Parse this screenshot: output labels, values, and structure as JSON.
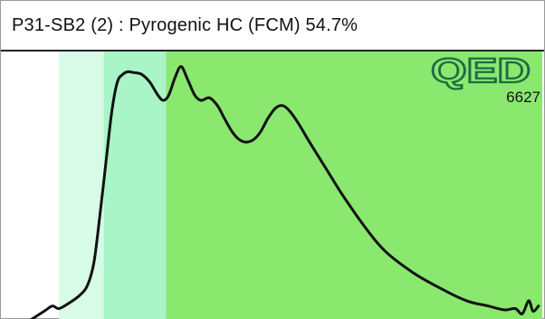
{
  "header": {
    "title": "P31-SB2 (2) : Pyrogenic HC (FCM) 54.7%"
  },
  "logo": {
    "text": "QED",
    "number": "6627",
    "color": "#1e6b44"
  },
  "colors": {
    "band_light": "#d8fbe8",
    "band_mid": "#a9f5c7",
    "band_main": "#8ae86f",
    "curve": "#111111"
  },
  "chart_data": {
    "type": "area",
    "title": "P31-SB2 (2) : Pyrogenic HC (FCM) 54.7%",
    "xlabel": "",
    "ylabel": "",
    "xlim": [
      0,
      100
    ],
    "ylim": [
      0,
      100
    ],
    "grid": false,
    "bands": [
      {
        "name": "band-light",
        "x_start": 10.7,
        "x_end": 19.0,
        "color": "#d8fbe8"
      },
      {
        "name": "band-mid",
        "x_start": 19.0,
        "x_end": 30.5,
        "color": "#a9f5c7"
      },
      {
        "name": "band-main",
        "x_start": 30.5,
        "x_end": 100,
        "color": "#8ae86f"
      }
    ],
    "series": [
      {
        "x": [
          5,
          8,
          9.5,
          10.7,
          12.5,
          14.5,
          16,
          17.2,
          18.3,
          19.5,
          20.5,
          21.5,
          22.5,
          23.5,
          24.5,
          26,
          27.5,
          29,
          30,
          31,
          32.2,
          33.3,
          34.5,
          35.8,
          37,
          38.5,
          40,
          41.3,
          42.7,
          44,
          45.3,
          46.7,
          48,
          49.3,
          50.7,
          52,
          53.3,
          55,
          57,
          60,
          63,
          67,
          71,
          76,
          81,
          86,
          90,
          93,
          95,
          96.3,
          97.5,
          98.3,
          99.3
        ],
        "y": [
          -1,
          3,
          5,
          4,
          6,
          9,
          13,
          22,
          40,
          62,
          80,
          91,
          94,
          95,
          94.7,
          94,
          91,
          86,
          84,
          86,
          93,
          97,
          92,
          86,
          84,
          85,
          82,
          77,
          72,
          69,
          68,
          69,
          72,
          77,
          81,
          82,
          80,
          75,
          68,
          58,
          48,
          36,
          26,
          18,
          12,
          7,
          5,
          3.5,
          4,
          2,
          7,
          3,
          5
        ]
      }
    ]
  }
}
